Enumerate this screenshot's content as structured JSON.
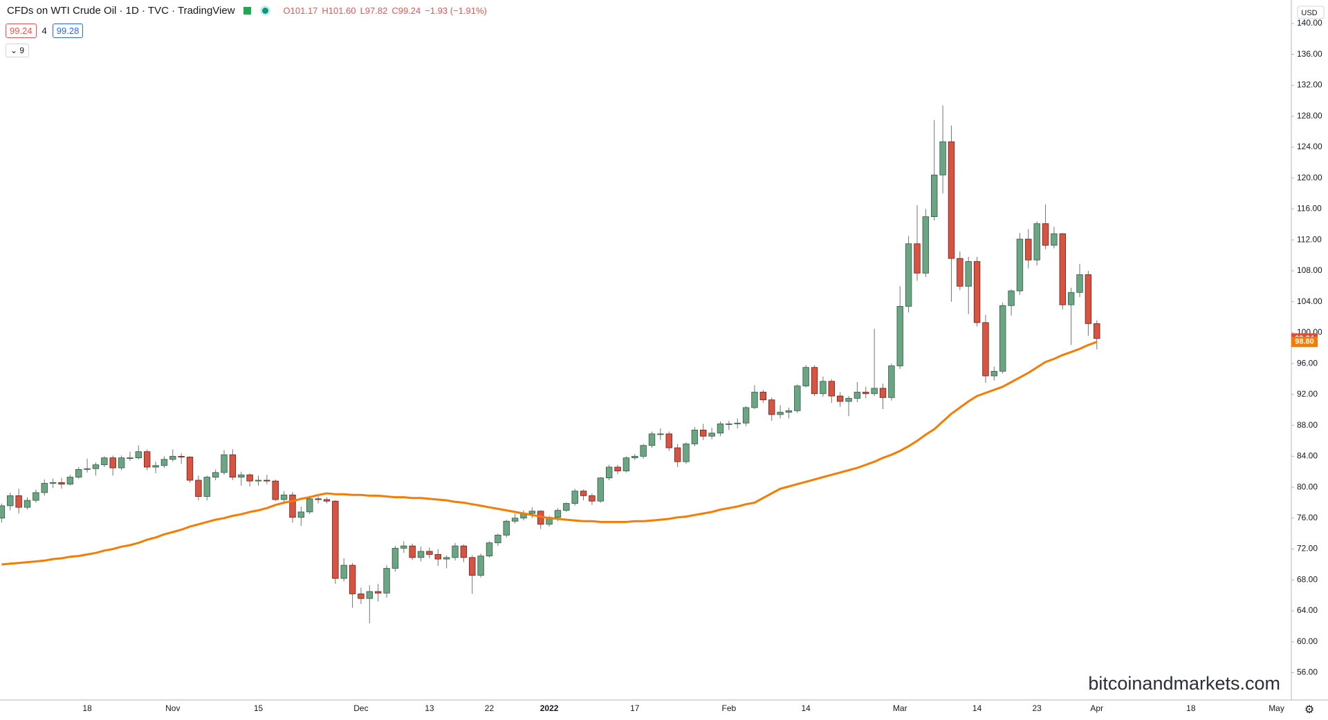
{
  "header": {
    "symbol": "CFDs on WTI Crude Oil · 1D · TVC · TradingView",
    "ohlc": [
      "O101.17",
      "H101.60",
      "L97.82",
      "C99.24",
      "−1.93 (−1.91%)"
    ],
    "bid": "99.24",
    "spread": "4",
    "ask": "99.28",
    "indicators": "9",
    "currency": "USD",
    "watermark": "bitcoinandmarkets.com"
  },
  "chart_data": {
    "type": "candlestick",
    "categories": [
      null,
      null,
      null,
      null,
      null,
      null,
      null,
      null,
      null,
      null,
      "18",
      null,
      null,
      null,
      null,
      null,
      null,
      null,
      null,
      null,
      "Nov",
      null,
      null,
      null,
      null,
      null,
      null,
      null,
      null,
      null,
      "15",
      null,
      null,
      null,
      null,
      null,
      null,
      null,
      null,
      null,
      null,
      null,
      "Dec",
      null,
      null,
      null,
      null,
      null,
      null,
      null,
      "13",
      null,
      null,
      null,
      null,
      null,
      null,
      "22",
      null,
      null,
      null,
      null,
      null,
      null,
      "2022",
      null,
      null,
      null,
      null,
      null,
      null,
      null,
      null,
      null,
      "17",
      null,
      null,
      null,
      null,
      null,
      null,
      null,
      null,
      null,
      null,
      "Feb",
      null,
      null,
      null,
      null,
      null,
      null,
      null,
      null,
      "14",
      null,
      null,
      null,
      null,
      null,
      null,
      null,
      null,
      null,
      null,
      "Mar",
      null,
      null,
      null,
      null,
      null,
      null,
      null,
      null,
      "14",
      null,
      null,
      null,
      null,
      null,
      null,
      "23",
      null,
      null,
      null,
      null,
      null,
      null,
      "Apr",
      null,
      null,
      null,
      null,
      null,
      null,
      null,
      null,
      null,
      null,
      "18",
      null,
      null,
      null,
      null,
      null,
      null,
      null,
      null,
      null,
      "May",
      null
    ],
    "ylim": [
      52.47,
      143.04
    ],
    "yticks": [
      {
        "value": 56,
        "label": "56.00"
      },
      {
        "value": 60,
        "label": "60.00"
      },
      {
        "value": 64,
        "label": "64.00"
      },
      {
        "value": 68,
        "label": "68.00"
      },
      {
        "value": 72,
        "label": "72.00"
      },
      {
        "value": 76,
        "label": "76.00"
      },
      {
        "value": 80,
        "label": "80.00"
      },
      {
        "value": 84,
        "label": "84.00"
      },
      {
        "value": 88,
        "label": "88.00"
      },
      {
        "value": 92,
        "label": "92.00"
      },
      {
        "value": 96,
        "label": "96.00"
      },
      {
        "value": 100,
        "label": "100.00"
      },
      {
        "value": 104,
        "label": "104.00"
      },
      {
        "value": 108,
        "label": "108.00"
      },
      {
        "value": 112,
        "label": "112.00"
      },
      {
        "value": 116,
        "label": "116.00"
      },
      {
        "value": 120,
        "label": "120.00"
      },
      {
        "value": 124,
        "label": "124.00"
      },
      {
        "value": 128,
        "label": "128.00"
      },
      {
        "value": 132,
        "label": "132.00"
      },
      {
        "value": 136,
        "label": "136.00"
      },
      {
        "value": 140,
        "label": "140.00"
      }
    ],
    "grid": false,
    "up_color": "#6ba583",
    "down_color": "#d75442",
    "series": [
      {
        "type": "candlestick",
        "color": "#737375",
        "ohlc": [
          [
            76.0,
            77.9,
            75.4,
            77.6
          ],
          [
            77.6,
            79.3,
            77.0,
            78.9
          ],
          [
            78.9,
            79.8,
            76.6,
            77.4
          ],
          [
            77.4,
            78.7,
            77.1,
            78.3
          ],
          [
            78.3,
            79.7,
            78.0,
            79.3
          ],
          [
            79.3,
            81.0,
            78.9,
            80.5
          ],
          [
            80.5,
            81.1,
            79.9,
            80.6
          ],
          [
            80.6,
            81.2,
            79.8,
            80.4
          ],
          [
            80.4,
            81.6,
            80.2,
            81.3
          ],
          [
            81.3,
            82.6,
            81.1,
            82.3
          ],
          [
            82.3,
            83.7,
            81.9,
            82.4
          ],
          [
            82.4,
            83.2,
            81.5,
            82.9
          ],
          [
            82.9,
            84.0,
            82.6,
            83.8
          ],
          [
            83.8,
            84.1,
            81.5,
            82.5
          ],
          [
            82.5,
            84.1,
            82.2,
            83.8
          ],
          [
            83.8,
            84.6,
            83.4,
            83.8
          ],
          [
            83.8,
            85.4,
            83.6,
            84.6
          ],
          [
            84.6,
            84.9,
            82.2,
            82.6
          ],
          [
            82.6,
            83.3,
            81.8,
            82.8
          ],
          [
            82.8,
            84.0,
            82.5,
            83.6
          ],
          [
            83.6,
            84.9,
            83.3,
            84.0
          ],
          [
            84.0,
            84.4,
            83.0,
            83.9
          ],
          [
            83.9,
            84.0,
            80.6,
            80.9
          ],
          [
            80.9,
            81.5,
            78.3,
            78.8
          ],
          [
            78.8,
            81.5,
            78.3,
            81.3
          ],
          [
            81.3,
            82.3,
            80.9,
            81.9
          ],
          [
            81.9,
            84.8,
            81.6,
            84.2
          ],
          [
            84.2,
            84.9,
            80.9,
            81.3
          ],
          [
            81.3,
            82.0,
            80.2,
            81.6
          ],
          [
            81.6,
            81.8,
            80.1,
            80.8
          ],
          [
            80.8,
            81.5,
            80.2,
            80.9
          ],
          [
            80.9,
            81.6,
            80.4,
            80.8
          ],
          [
            80.8,
            81.0,
            78.2,
            78.4
          ],
          [
            78.4,
            79.5,
            77.9,
            79.0
          ],
          [
            79.0,
            79.4,
            75.4,
            76.1
          ],
          [
            76.1,
            77.5,
            75.0,
            76.8
          ],
          [
            76.8,
            78.9,
            76.5,
            78.5
          ],
          [
            78.5,
            78.9,
            77.9,
            78.4
          ],
          [
            78.4,
            78.7,
            77.9,
            78.2
          ],
          [
            78.2,
            78.3,
            67.5,
            68.2
          ],
          [
            68.2,
            70.8,
            67.8,
            69.9
          ],
          [
            69.9,
            70.2,
            64.4,
            66.2
          ],
          [
            66.2,
            67.0,
            64.9,
            65.6
          ],
          [
            65.6,
            67.3,
            62.4,
            66.5
          ],
          [
            66.5,
            67.5,
            65.2,
            66.3
          ],
          [
            66.3,
            69.9,
            65.7,
            69.5
          ],
          [
            69.5,
            72.4,
            69.1,
            72.1
          ],
          [
            72.1,
            73.0,
            71.5,
            72.4
          ],
          [
            72.4,
            72.7,
            70.6,
            70.9
          ],
          [
            70.9,
            72.3,
            70.4,
            71.7
          ],
          [
            71.7,
            72.2,
            70.8,
            71.3
          ],
          [
            71.3,
            72.0,
            69.8,
            70.7
          ],
          [
            70.7,
            71.2,
            69.5,
            70.9
          ],
          [
            70.9,
            72.8,
            70.5,
            72.4
          ],
          [
            72.4,
            72.6,
            70.3,
            70.9
          ],
          [
            70.9,
            71.2,
            66.2,
            68.6
          ],
          [
            68.6,
            71.4,
            68.3,
            71.1
          ],
          [
            71.1,
            73.0,
            70.9,
            72.8
          ],
          [
            72.8,
            74.0,
            72.4,
            73.8
          ],
          [
            73.8,
            75.8,
            73.5,
            75.6
          ],
          [
            75.6,
            76.6,
            75.3,
            76.0
          ],
          [
            76.0,
            77.0,
            75.7,
            76.6
          ],
          [
            76.6,
            77.4,
            76.0,
            76.9
          ],
          [
            76.9,
            77.0,
            74.6,
            75.2
          ],
          [
            75.2,
            76.3,
            74.9,
            76.1
          ],
          [
            76.1,
            77.3,
            75.6,
            77.0
          ],
          [
            77.0,
            78.0,
            76.8,
            77.9
          ],
          [
            77.9,
            79.8,
            77.6,
            79.5
          ],
          [
            79.5,
            79.7,
            78.3,
            78.9
          ],
          [
            78.9,
            79.2,
            77.7,
            78.2
          ],
          [
            78.2,
            81.3,
            78.0,
            81.2
          ],
          [
            81.2,
            82.9,
            80.9,
            82.6
          ],
          [
            82.6,
            82.9,
            81.7,
            82.1
          ],
          [
            82.1,
            84.0,
            81.9,
            83.8
          ],
          [
            83.8,
            84.3,
            83.5,
            84.0
          ],
          [
            84.0,
            85.6,
            83.7,
            85.4
          ],
          [
            85.4,
            87.2,
            85.1,
            86.9
          ],
          [
            86.9,
            87.6,
            86.1,
            86.9
          ],
          [
            86.9,
            87.2,
            84.7,
            85.1
          ],
          [
            85.1,
            85.6,
            82.6,
            83.3
          ],
          [
            83.3,
            85.8,
            83.0,
            85.6
          ],
          [
            85.6,
            87.8,
            85.3,
            87.4
          ],
          [
            87.4,
            88.2,
            86.1,
            86.6
          ],
          [
            86.6,
            87.7,
            86.2,
            87.0
          ],
          [
            87.0,
            88.5,
            86.6,
            88.2
          ],
          [
            88.2,
            88.6,
            87.4,
            88.2
          ],
          [
            88.2,
            88.9,
            87.6,
            88.3
          ],
          [
            88.3,
            90.5,
            87.9,
            90.3
          ],
          [
            90.3,
            93.2,
            90.1,
            92.3
          ],
          [
            92.3,
            92.6,
            90.9,
            91.3
          ],
          [
            91.3,
            91.6,
            88.6,
            89.4
          ],
          [
            89.4,
            90.6,
            88.9,
            89.7
          ],
          [
            89.7,
            90.3,
            88.9,
            89.9
          ],
          [
            89.9,
            93.3,
            89.6,
            93.1
          ],
          [
            93.1,
            95.8,
            92.9,
            95.5
          ],
          [
            95.5,
            95.8,
            91.8,
            92.1
          ],
          [
            92.1,
            94.3,
            91.7,
            93.7
          ],
          [
            93.7,
            94.0,
            90.9,
            91.8
          ],
          [
            91.8,
            92.3,
            90.4,
            91.1
          ],
          [
            91.1,
            91.8,
            89.2,
            91.5
          ],
          [
            91.5,
            93.6,
            91.0,
            92.3
          ],
          [
            92.3,
            93.0,
            91.5,
            92.1
          ],
          [
            92.1,
            100.5,
            91.8,
            92.8
          ],
          [
            92.8,
            93.4,
            90.1,
            91.6
          ],
          [
            91.6,
            96.0,
            91.2,
            95.7
          ],
          [
            95.7,
            106.0,
            95.3,
            103.4
          ],
          [
            103.4,
            112.5,
            102.6,
            111.5
          ],
          [
            111.5,
            116.5,
            106.7,
            107.7
          ],
          [
            107.7,
            116.0,
            107.2,
            115.0
          ],
          [
            115.0,
            127.5,
            114.5,
            120.4
          ],
          [
            120.4,
            129.4,
            118.0,
            124.7
          ],
          [
            124.7,
            126.8,
            104.0,
            109.6
          ],
          [
            109.6,
            110.5,
            105.5,
            106.0
          ],
          [
            106.0,
            109.8,
            102.4,
            109.2
          ],
          [
            109.2,
            109.8,
            100.8,
            101.3
          ],
          [
            101.3,
            102.3,
            93.5,
            94.4
          ],
          [
            94.4,
            95.6,
            93.8,
            95.0
          ],
          [
            95.0,
            103.9,
            94.7,
            103.5
          ],
          [
            103.5,
            105.6,
            102.2,
            105.4
          ],
          [
            105.4,
            112.9,
            104.9,
            112.1
          ],
          [
            112.1,
            113.4,
            108.3,
            109.4
          ],
          [
            109.4,
            114.4,
            108.7,
            114.1
          ],
          [
            114.1,
            116.6,
            110.8,
            111.3
          ],
          [
            111.3,
            113.7,
            110.9,
            112.8
          ],
          [
            112.8,
            112.9,
            103.0,
            103.6
          ],
          [
            103.6,
            105.8,
            98.4,
            105.2
          ],
          [
            105.2,
            108.9,
            104.6,
            107.5
          ],
          [
            107.5,
            108.0,
            99.6,
            101.17
          ],
          [
            101.17,
            101.6,
            97.82,
            99.24
          ],
          null,
          null,
          null,
          null,
          null,
          null,
          null,
          null,
          null,
          null,
          null,
          null,
          null,
          null,
          null,
          null,
          null,
          null,
          null,
          null,
          null,
          null
        ]
      },
      {
        "type": "line",
        "color": "#f57c00",
        "values": [
          70.0,
          70.1,
          70.2,
          70.3,
          70.4,
          70.5,
          70.7,
          70.8,
          71.0,
          71.1,
          71.3,
          71.5,
          71.8,
          72.0,
          72.3,
          72.5,
          72.8,
          73.2,
          73.5,
          73.9,
          74.2,
          74.5,
          74.9,
          75.2,
          75.5,
          75.8,
          76.0,
          76.3,
          76.5,
          76.8,
          77.0,
          77.3,
          77.7,
          78.0,
          78.2,
          78.5,
          78.7,
          79.0,
          79.2,
          79.1,
          79.1,
          79.0,
          79.0,
          78.9,
          78.9,
          78.8,
          78.7,
          78.7,
          78.6,
          78.6,
          78.5,
          78.4,
          78.3,
          78.1,
          78.0,
          77.8,
          77.6,
          77.4,
          77.2,
          77.0,
          76.8,
          76.6,
          76.4,
          76.2,
          76.0,
          75.9,
          75.8,
          75.7,
          75.6,
          75.6,
          75.5,
          75.5,
          75.5,
          75.5,
          75.6,
          75.6,
          75.7,
          75.8,
          75.9,
          76.1,
          76.2,
          76.4,
          76.6,
          76.8,
          77.1,
          77.3,
          77.5,
          77.8,
          78.0,
          78.6,
          79.2,
          79.8,
          80.1,
          80.4,
          80.7,
          81.0,
          81.3,
          81.6,
          81.9,
          82.2,
          82.5,
          82.9,
          83.3,
          83.8,
          84.2,
          84.7,
          85.3,
          86.0,
          86.8,
          87.5,
          88.5,
          89.5,
          90.3,
          91.1,
          91.8,
          92.2,
          92.6,
          93.0,
          93.6,
          94.2,
          94.8,
          95.5,
          96.2,
          96.6,
          97.1,
          97.5,
          97.9,
          98.4,
          98.8,
          null,
          null,
          null,
          null,
          null,
          null,
          null,
          null,
          null,
          null,
          null,
          null,
          null,
          null,
          null,
          null,
          null,
          null,
          null,
          null,
          null,
          null
        ]
      }
    ],
    "price_tags": [
      {
        "value": 99.24,
        "label": "99.24",
        "color": "#e0483a"
      },
      {
        "value": 98.8,
        "label": "98.80",
        "color": "#f57c00"
      }
    ]
  }
}
